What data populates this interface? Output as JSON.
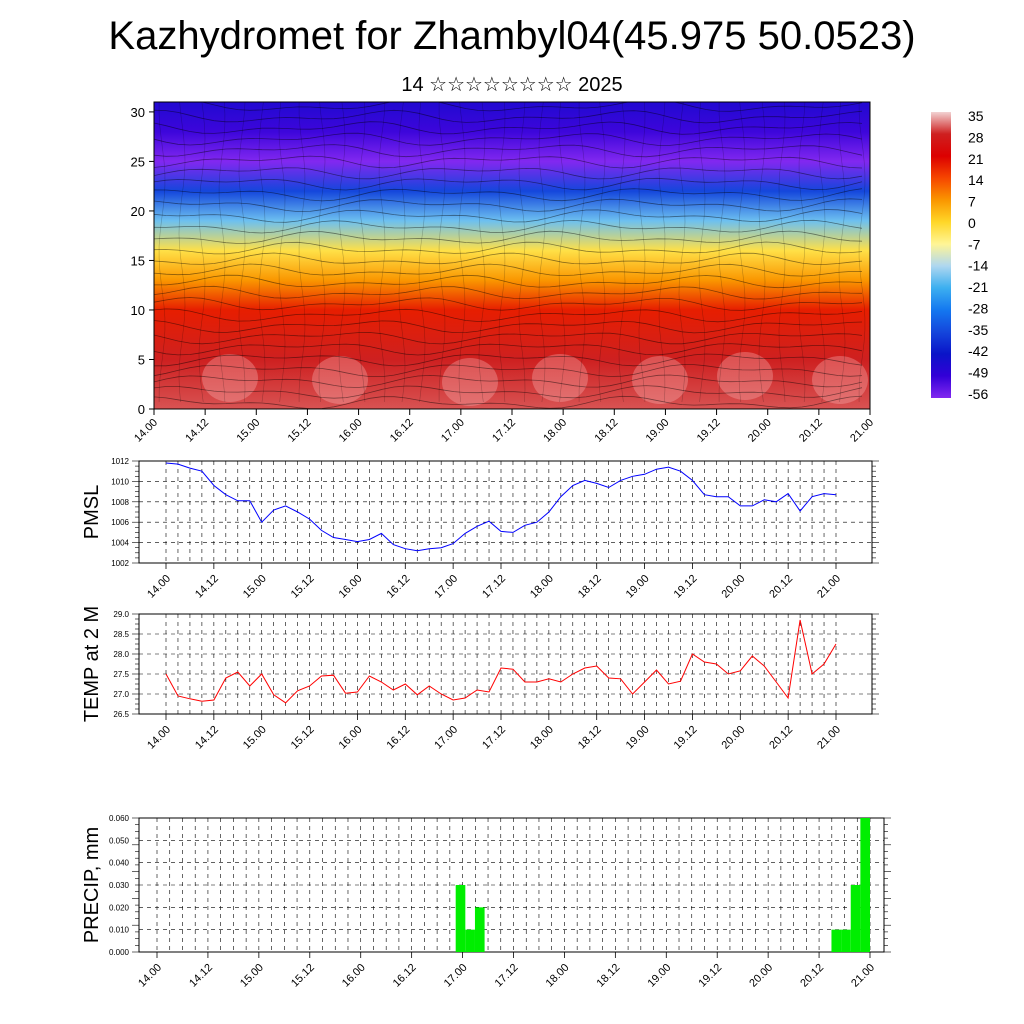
{
  "title": "Kazhydromet for Zhambyl04(45.975 50.0523)",
  "subtitle": "14 ☆☆☆☆☆☆☆☆ 2025",
  "time_ticks": [
    "14.00",
    "14.12",
    "15.00",
    "15.12",
    "16.00",
    "16.12",
    "17.00",
    "17.12",
    "18.00",
    "18.12",
    "19.00",
    "19.12",
    "20.00",
    "20.12",
    "21.00"
  ],
  "colors": {
    "pmsl": "#0000ff",
    "temp": "#ff0000",
    "precip": "#00ee00"
  },
  "chart_data": [
    {
      "type": "heatmap",
      "name": "cross-section",
      "x_range": [
        14.0,
        21.0
      ],
      "y_range": [
        0,
        31
      ],
      "yticks": [
        0,
        5,
        10,
        15,
        20,
        25,
        30
      ],
      "colorbar": {
        "labels": [
          "35",
          "28",
          "21",
          "14",
          "7",
          "0",
          "-7",
          "-14",
          "-21",
          "-28",
          "-35",
          "-42",
          "-49",
          "-56"
        ],
        "levels": [
          35,
          28,
          21,
          14,
          7,
          0,
          -7,
          -14,
          -21,
          -28,
          -35,
          -42,
          -49,
          -56
        ]
      },
      "vertical_profile": [
        {
          "height": 0,
          "value": 30
        },
        {
          "height": 5,
          "value": 28
        },
        {
          "height": 10,
          "value": 18
        },
        {
          "height": 13,
          "value": 7
        },
        {
          "height": 16,
          "value": -2
        },
        {
          "height": 19,
          "value": -18
        },
        {
          "height": 22,
          "value": -35
        },
        {
          "height": 25,
          "value": -56
        },
        {
          "height": 28,
          "value": -50
        },
        {
          "height": 31,
          "value": -46
        }
      ],
      "overlay": "wind streamlines"
    },
    {
      "type": "line",
      "ylabel": "PMSL",
      "ylim": [
        1002,
        1012
      ],
      "yticks": [
        1002,
        1004,
        1006,
        1008,
        1010,
        1012
      ],
      "x_step_hours": 3,
      "series": [
        {
          "values": [
            1011.8,
            1011.7,
            1011.3,
            1011.0,
            1009.6,
            1008.7,
            1008.1,
            1008.1,
            1006.0,
            1007.2,
            1007.6,
            1007.0,
            1006.3,
            1005.2,
            1004.5,
            1004.3,
            1004.1,
            1004.3,
            1004.9,
            1003.8,
            1003.4,
            1003.2,
            1003.4,
            1003.5,
            1003.9,
            1004.9,
            1005.6,
            1006.1,
            1005.1,
            1005.0,
            1005.7,
            1006.0,
            1007.0,
            1008.5,
            1009.6,
            1010.1,
            1009.8,
            1009.4,
            1010.1,
            1010.5,
            1010.7,
            1011.2,
            1011.4,
            1011.0,
            1010.1,
            1008.7,
            1008.5,
            1008.5,
            1007.6,
            1007.6,
            1008.2,
            1008.0,
            1008.8,
            1007.1,
            1008.5,
            1008.8,
            1008.7
          ]
        }
      ]
    },
    {
      "type": "line",
      "ylabel": "TEMP at 2 M",
      "ylim": [
        26.5,
        29.0
      ],
      "yticks": [
        26.5,
        27.0,
        27.5,
        28.0,
        28.5,
        29.0
      ],
      "x_step_hours": 3,
      "series": [
        {
          "values": [
            27.5,
            26.95,
            26.88,
            26.82,
            26.85,
            27.4,
            27.55,
            27.2,
            27.5,
            26.98,
            26.78,
            27.08,
            27.2,
            27.45,
            27.47,
            27.02,
            27.05,
            27.45,
            27.3,
            27.1,
            27.25,
            26.98,
            27.2,
            27.0,
            26.85,
            26.9,
            27.1,
            27.05,
            27.65,
            27.62,
            27.3,
            27.3,
            27.38,
            27.3,
            27.5,
            27.65,
            27.7,
            27.4,
            27.38,
            27.0,
            27.3,
            27.6,
            27.25,
            27.32,
            28.0,
            27.8,
            27.75,
            27.5,
            27.58,
            27.95,
            27.7,
            27.3,
            26.9,
            28.85,
            27.5,
            27.75,
            28.25
          ]
        }
      ]
    },
    {
      "type": "bar",
      "ylabel": "PRECIP, mm",
      "ylim": [
        0.0,
        0.06
      ],
      "yticks": [
        "0.000",
        "0.010",
        "0.020",
        "0.030",
        "0.040",
        "0.050",
        "0.060"
      ],
      "x_step_hours": 3,
      "values": [
        0,
        0,
        0,
        0,
        0,
        0,
        0,
        0,
        0,
        0,
        0,
        0,
        0,
        0,
        0,
        0,
        0,
        0,
        0,
        0,
        0,
        0,
        0,
        0,
        0,
        0,
        0,
        0,
        0,
        0,
        0,
        0.03,
        0.01,
        0.02,
        0,
        0,
        0,
        0,
        0,
        0,
        0,
        0,
        0,
        0,
        0,
        0,
        0,
        0,
        0,
        0,
        0,
        0,
        0,
        0,
        0,
        0,
        0,
        0,
        0,
        0,
        0,
        0,
        0,
        0,
        0,
        0,
        0,
        0,
        0,
        0,
        0.01,
        0.01,
        0.03,
        0.06
      ]
    }
  ]
}
